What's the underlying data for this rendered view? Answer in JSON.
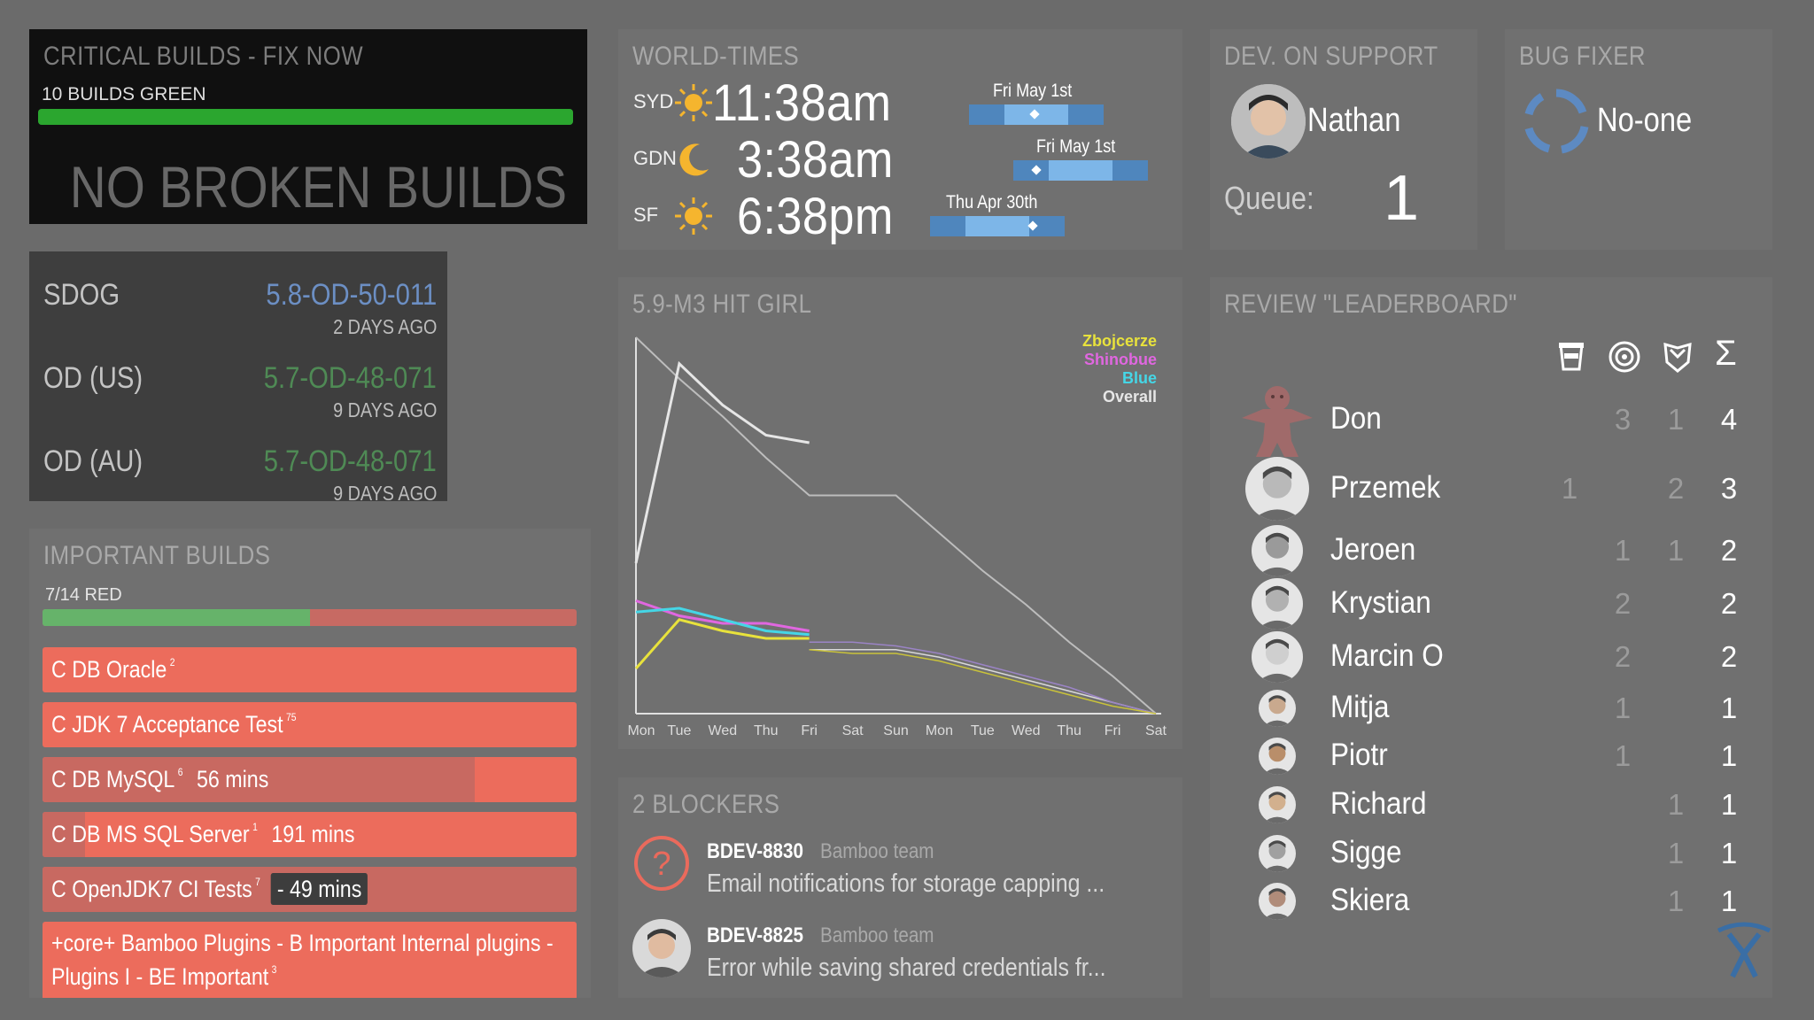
{
  "critical": {
    "title": "CRITICAL BUILDS - FIX NOW",
    "green_count": "10 BUILDS GREEN",
    "green_fraction": 1.0,
    "message": "NO BROKEN BUILDS"
  },
  "deployments": [
    {
      "name": "SDOG",
      "version": "5.8-OD-50-011",
      "ago": "2 DAYS AGO",
      "color": "#6c8fc4"
    },
    {
      "name": "OD (US)",
      "version": "5.7-OD-48-071",
      "ago": "9 DAYS AGO",
      "color": "#4f8a55"
    },
    {
      "name": "OD (AU)",
      "version": "5.7-OD-48-071",
      "ago": "9 DAYS AGO",
      "color": "#4f8a55"
    }
  ],
  "important": {
    "title": "IMPORTANT BUILDS",
    "red_count": "7/14 RED",
    "green_fraction": 0.5,
    "builds": [
      {
        "name": "C DB Oracle",
        "count": "2",
        "time": "",
        "tag": "",
        "progress": 0
      },
      {
        "name": "C JDK 7 Acceptance Test",
        "count": "75",
        "time": "",
        "tag": "",
        "progress": 0
      },
      {
        "name": "C DB MySQL",
        "count": "6",
        "time": "56 mins",
        "tag": "",
        "progress": 0.81
      },
      {
        "name": "C DB MS SQL Server",
        "count": "1",
        "time": "191 mins",
        "tag": "",
        "progress": 0.08
      },
      {
        "name": "C OpenJDK7 CI Tests",
        "count": "7",
        "time": "",
        "tag": "- 49 mins",
        "progress": 1.0
      },
      {
        "name": "+core+ Bamboo Plugins - B Important Internal plugins - Plugins I - BE Important",
        "count": "3",
        "time": "",
        "tag": "",
        "progress": 0
      }
    ]
  },
  "worldtimes": {
    "title": "WORLD-TIMES",
    "zones": [
      {
        "code": "SYD",
        "icon": "sun-icon",
        "time": "11:38am",
        "date": "Fri May 1st"
      },
      {
        "code": "GDN",
        "icon": "moon-icon",
        "time": "3:38am",
        "date": "Fri May 1st"
      },
      {
        "code": "SF",
        "icon": "sun-icon",
        "time": "6:38pm",
        "date": "Thu Apr 30th"
      }
    ]
  },
  "devsupport": {
    "title": "DEV. ON SUPPORT",
    "name": "Nathan",
    "queue_label": "Queue:",
    "queue_value": "1"
  },
  "bugfixer": {
    "title": "BUG FIXER",
    "name": "No-one"
  },
  "chart_data": {
    "type": "line",
    "title": "5.9-M3 HIT GIRL",
    "x": [
      "Mon",
      "Tue",
      "Wed",
      "Thu",
      "Fri",
      "Sat",
      "Sun",
      "Mon",
      "Tue",
      "Wed",
      "Thu",
      "Fri",
      "Sat"
    ],
    "ylim": [
      0,
      100
    ],
    "legend_position": "top-right",
    "series": [
      {
        "name": "Zbojcerze",
        "color": "#e8e23c",
        "values": [
          12,
          25,
          22,
          20,
          20,
          null,
          null,
          null,
          null,
          null,
          null,
          null,
          null
        ]
      },
      {
        "name": "Shinobue",
        "color": "#e067e0",
        "values": [
          30,
          26,
          24,
          24,
          22,
          null,
          null,
          null,
          null,
          null,
          null,
          null,
          null
        ]
      },
      {
        "name": "Blue",
        "color": "#45d6e6",
        "values": [
          27,
          28,
          25,
          22,
          21,
          null,
          null,
          null,
          null,
          null,
          null,
          null,
          null
        ]
      },
      {
        "name": "Overall",
        "color": "#e6e6e6",
        "values": [
          40,
          93,
          82,
          74,
          72,
          null,
          null,
          null,
          null,
          null,
          null,
          null,
          null
        ]
      }
    ],
    "ideal": [
      100,
      89,
      79,
      68,
      58,
      58,
      58,
      48,
      38,
      29,
      19,
      10,
      0
    ],
    "trend_lines": [
      {
        "color": "#d9d9d9",
        "values": [
          null,
          null,
          null,
          null,
          17,
          17,
          17,
          15,
          12,
          9,
          6,
          3,
          0
        ]
      },
      {
        "color": "#9b84c6",
        "values": [
          null,
          null,
          null,
          null,
          19,
          19,
          18,
          16,
          13,
          10,
          7,
          3,
          0
        ]
      },
      {
        "color": "#c9c23a",
        "values": [
          null,
          null,
          null,
          null,
          17,
          16,
          16,
          14,
          11,
          8,
          5,
          2,
          0
        ]
      }
    ]
  },
  "blockers": {
    "title": "2 BLOCKERS",
    "items": [
      {
        "key": "BDEV-8830",
        "team": "Bamboo team",
        "summary": "Email notifications for storage capping ...",
        "avatar": "question-icon"
      },
      {
        "key": "BDEV-8825",
        "team": "Bamboo team",
        "summary": "Error while saving shared credentials fr...",
        "avatar": "avatar"
      }
    ]
  },
  "leaderboard": {
    "title": "REVIEW \"LEADERBOARD\"",
    "columns": [
      "cup-icon",
      "target-icon",
      "shield-icon",
      "Σ"
    ],
    "rows": [
      {
        "name": "Don",
        "c1": "",
        "c2": "3",
        "c3": "1",
        "total": "4"
      },
      {
        "name": "Przemek",
        "c1": "1",
        "c2": "",
        "c3": "2",
        "total": "3"
      },
      {
        "name": "Jeroen",
        "c1": "",
        "c2": "1",
        "c3": "1",
        "total": "2"
      },
      {
        "name": "Krystian",
        "c1": "",
        "c2": "2",
        "c3": "",
        "total": "2"
      },
      {
        "name": "Marcin O",
        "c1": "",
        "c2": "2",
        "c3": "",
        "total": "2"
      },
      {
        "name": "Mitja",
        "c1": "",
        "c2": "1",
        "c3": "",
        "total": "1"
      },
      {
        "name": "Piotr",
        "c1": "",
        "c2": "1",
        "c3": "",
        "total": "1"
      },
      {
        "name": "Richard",
        "c1": "",
        "c2": "",
        "c3": "1",
        "total": "1"
      },
      {
        "name": "Sigge",
        "c1": "",
        "c2": "",
        "c3": "1",
        "total": "1"
      },
      {
        "name": "Skiera",
        "c1": "",
        "c2": "",
        "c3": "1",
        "total": "1"
      }
    ]
  }
}
